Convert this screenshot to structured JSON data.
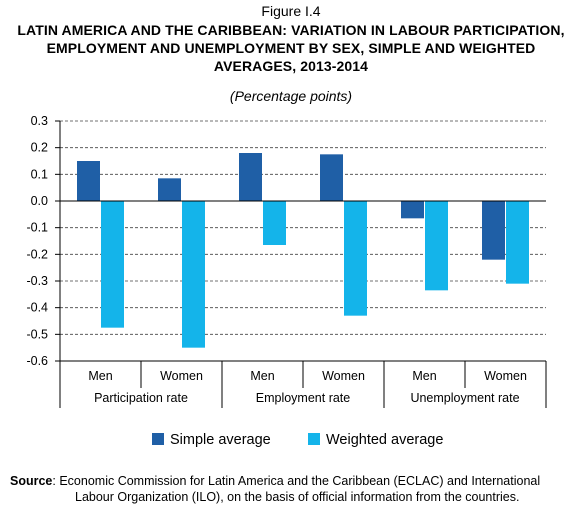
{
  "figure_label": "Figure I.4",
  "title": "LATIN AMERICA AND THE CARIBBEAN: VARIATION IN LABOUR PARTICIPATION, EMPLOYMENT AND UNEMPLOYMENT BY SEX, SIMPLE AND WEIGHTED AVERAGES, 2013-2014",
  "subtitle": "(Percentage points)",
  "source": {
    "label": "Source",
    "line1": ": Economic Commission for Latin America and the Caribbean (ECLAC) and International",
    "line2": "Labour Organization (ILO), on the basis of official information from the countries."
  },
  "chart_data": {
    "type": "bar",
    "categories": [
      "Men",
      "Women",
      "Men",
      "Women",
      "Men",
      "Women"
    ],
    "groups": [
      {
        "label": "Participation rate",
        "span": [
          0,
          1
        ]
      },
      {
        "label": "Employment rate",
        "span": [
          2,
          3
        ]
      },
      {
        "label": "Unemployment rate",
        "span": [
          4,
          5
        ]
      }
    ],
    "series": [
      {
        "name": "Simple average",
        "color": "#1f5fa6",
        "values": [
          0.15,
          0.085,
          0.18,
          0.175,
          -0.065,
          -0.22
        ]
      },
      {
        "name": "Weighted average",
        "color": "#14b4ea",
        "values": [
          -0.475,
          -0.55,
          -0.165,
          -0.43,
          -0.335,
          -0.31
        ]
      }
    ],
    "ylim": [
      -0.6,
      0.3
    ],
    "yticks": [
      "0.3",
      "0.2",
      "0.1",
      "0.0",
      "-0.1",
      "-0.2",
      "-0.3",
      "-0.4",
      "-0.5",
      "-0.6"
    ],
    "grid": true,
    "legend_position": "bottom"
  }
}
